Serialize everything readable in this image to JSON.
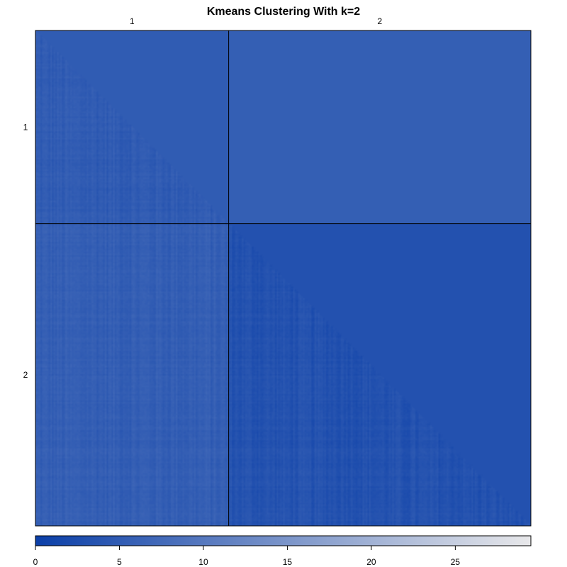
{
  "chart_data": {
    "type": "heatmap",
    "title": "Kmeans Clustering With k=2",
    "clusters": [
      {
        "label": "1",
        "size": 117
      },
      {
        "label": "2",
        "size": 183
      }
    ],
    "column_labels": [
      "1",
      "2"
    ],
    "row_labels": [
      "1",
      "2"
    ],
    "block_mean_distance": [
      [
        5.0,
        5.5
      ],
      [
        5.5,
        3.2
      ]
    ],
    "lower_triangle_shows": "pairwise distances",
    "upper_triangle_shows": "block means",
    "colorbar": {
      "min": 0,
      "max": 29.5,
      "ticks": [
        0,
        5,
        10,
        15,
        20,
        25
      ],
      "tick_labels": [
        "0",
        "5",
        "10",
        "15",
        "20",
        "25"
      ],
      "color_low": "#0b3fa8",
      "color_high": "#e8e8ea"
    }
  }
}
